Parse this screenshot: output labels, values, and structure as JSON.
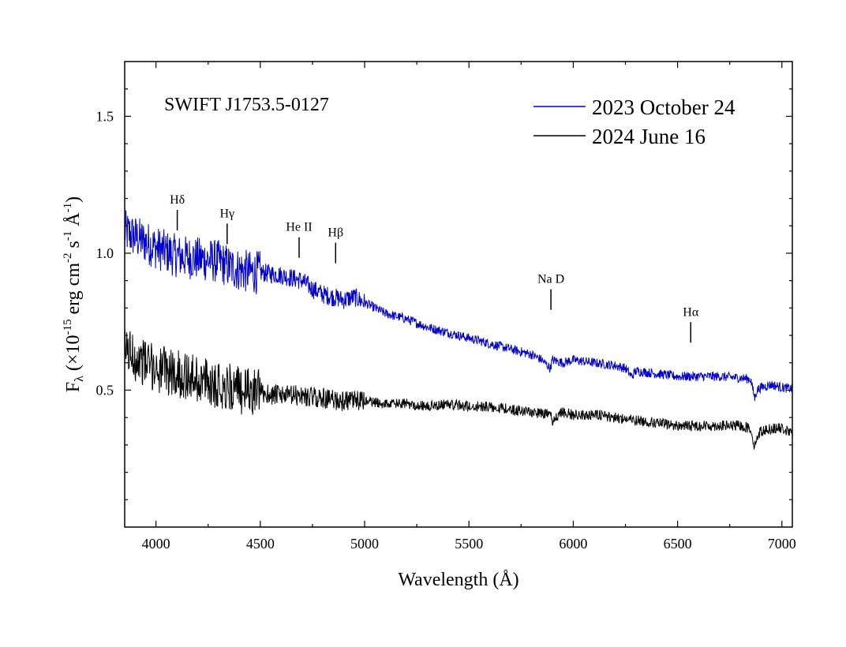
{
  "chart_data": {
    "type": "line",
    "title": "SWIFT J1753.5-0127",
    "xlabel": "Wavelength (Å)",
    "ylabel": {
      "prefix": "F",
      "sub": "λ",
      "part1": " (×10",
      "sup1": "-15",
      "part2": " erg cm",
      "sup2": "-2",
      "part3": " s",
      "sup3": "-1",
      "part4": " Å",
      "sup4": "-1",
      "part5": ")"
    },
    "xlim": [
      3850,
      7050
    ],
    "ylim": [
      0.0,
      1.7
    ],
    "x_ticks": [
      4000,
      4500,
      5000,
      5500,
      6000,
      6500,
      7000
    ],
    "x_tick_labels": [
      "4000",
      "4500",
      "5000",
      "5500",
      "6000",
      "6500",
      "7000"
    ],
    "y_ticks": [
      0.5,
      1.0,
      1.5
    ],
    "y_tick_labels": [
      "0.5",
      "1.0",
      "1.5"
    ],
    "legend_position": "top-right",
    "grid": false,
    "series": [
      {
        "name": "2023 October 24",
        "color": "#0000cc",
        "x": [
          3850,
          3900,
          3950,
          4000,
          4100,
          4200,
          4300,
          4350,
          4400,
          4450,
          4500,
          4600,
          4700,
          4750,
          4800,
          4850,
          4900,
          4950,
          5000,
          5100,
          5200,
          5300,
          5400,
          5500,
          5600,
          5700,
          5800,
          5850,
          5890,
          5900,
          5950,
          6000,
          6100,
          6200,
          6250,
          6280,
          6300,
          6400,
          6500,
          6600,
          6700,
          6800,
          6850,
          6870,
          6880,
          6900,
          6950,
          7000,
          7050
        ],
        "y": [
          1.08,
          1.06,
          1.04,
          1.02,
          0.99,
          0.98,
          0.97,
          0.95,
          0.94,
          0.93,
          0.93,
          0.92,
          0.9,
          0.87,
          0.85,
          0.84,
          0.83,
          0.84,
          0.82,
          0.78,
          0.76,
          0.73,
          0.71,
          0.69,
          0.67,
          0.65,
          0.63,
          0.61,
          0.58,
          0.61,
          0.6,
          0.61,
          0.6,
          0.59,
          0.58,
          0.55,
          0.57,
          0.56,
          0.55,
          0.55,
          0.55,
          0.545,
          0.54,
          0.47,
          0.5,
          0.51,
          0.52,
          0.51,
          0.505
        ]
      },
      {
        "name": "2024 June 16",
        "color": "#000000",
        "x": [
          3850,
          3900,
          3950,
          4000,
          4100,
          4200,
          4300,
          4400,
          4500,
          4600,
          4700,
          4800,
          4900,
          5000,
          5100,
          5200,
          5300,
          5400,
          5500,
          5600,
          5700,
          5800,
          5890,
          5900,
          5950,
          6000,
          6100,
          6200,
          6300,
          6400,
          6500,
          6600,
          6700,
          6800,
          6850,
          6870,
          6880,
          6900,
          6950,
          7000,
          7050
        ],
        "y": [
          0.65,
          0.62,
          0.6,
          0.58,
          0.56,
          0.54,
          0.52,
          0.5,
          0.49,
          0.48,
          0.48,
          0.47,
          0.46,
          0.46,
          0.45,
          0.45,
          0.44,
          0.45,
          0.44,
          0.44,
          0.43,
          0.42,
          0.41,
          0.39,
          0.42,
          0.41,
          0.41,
          0.4,
          0.39,
          0.38,
          0.37,
          0.37,
          0.37,
          0.37,
          0.36,
          0.29,
          0.33,
          0.35,
          0.36,
          0.36,
          0.34
        ]
      }
    ],
    "annotations": [
      {
        "label_main": "H",
        "label_greek": "δ",
        "x": 4102,
        "y": 1.02
      },
      {
        "label_main": "H",
        "label_greek": "γ",
        "x": 4341,
        "y": 0.97
      },
      {
        "label_main": "He II",
        "label_greek": "",
        "x": 4686,
        "y": 0.92
      },
      {
        "label_main": "H",
        "label_greek": "β",
        "x": 4861,
        "y": 0.9
      },
      {
        "label_main": "Na D",
        "label_greek": "",
        "x": 5893,
        "y": 0.73
      },
      {
        "label_main": "H",
        "label_greek": "α",
        "x": 6563,
        "y": 0.61
      }
    ]
  }
}
